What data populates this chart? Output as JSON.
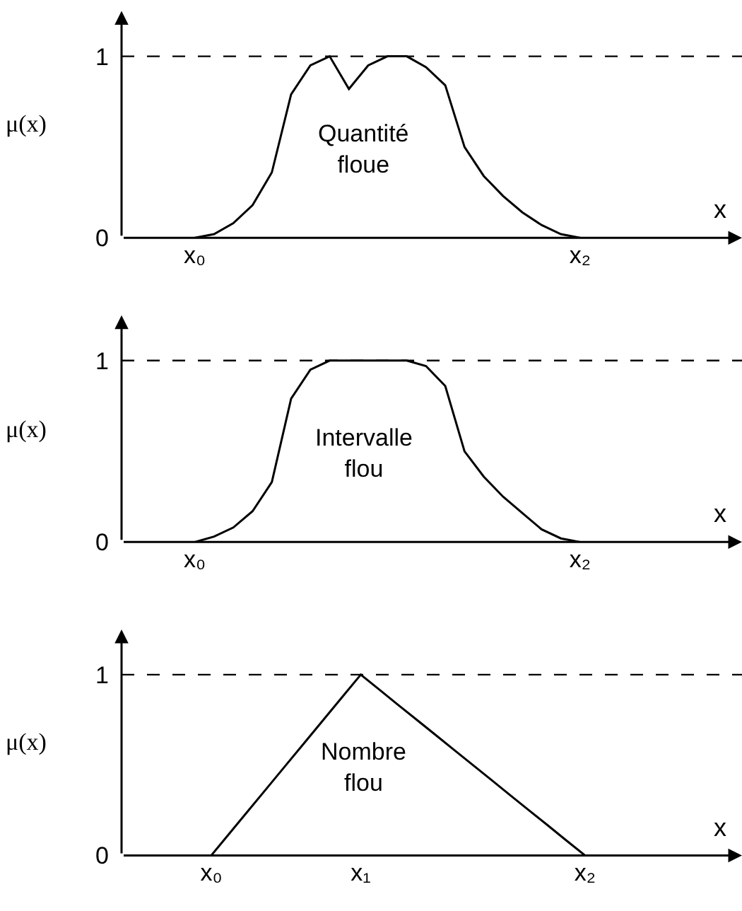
{
  "chart_data": [
    {
      "type": "line",
      "categories": [
        null,
        null,
        null,
        "x₀",
        null,
        null,
        null,
        null,
        null,
        null,
        null,
        null,
        null,
        null,
        null,
        null,
        null,
        null,
        null,
        null,
        null,
        null,
        null,
        "x₂",
        null,
        null,
        null,
        null,
        null,
        null,
        null,
        null
      ],
      "series": [
        {
          "color": "#000000",
          "values": [
            null,
            null,
            null,
            0,
            0.02,
            0.08,
            0.18,
            0.36,
            0.79,
            0.95,
            1,
            0.82,
            0.95,
            1,
            1,
            0.94,
            0.84,
            0.5,
            0.34,
            0.23,
            0.14,
            0.07,
            0.02,
            0,
            null,
            null,
            null,
            null,
            null,
            null,
            null,
            null
          ]
        }
      ],
      "ylim": [
        0,
        1.25
      ],
      "yticks": [
        0,
        1
      ],
      "xlabel": "x",
      "ylabel": "μ(x)",
      "annotations": [
        "Quantité\nfloue"
      ],
      "ref_lines": [
        {
          "axis": "y",
          "value": 1,
          "color": "#000000",
          "line_style": "dashed"
        }
      ],
      "line_style": "solid"
    },
    {
      "type": "line",
      "categories": [
        null,
        null,
        null,
        "x₀",
        null,
        null,
        null,
        null,
        null,
        null,
        null,
        null,
        null,
        null,
        null,
        null,
        null,
        null,
        null,
        null,
        null,
        null,
        null,
        "x₂",
        null,
        null,
        null,
        null,
        null,
        null,
        null,
        null
      ],
      "series": [
        {
          "color": "#000000",
          "values": [
            null,
            null,
            null,
            0,
            0.03,
            0.08,
            0.17,
            0.33,
            0.79,
            0.95,
            1,
            1,
            1,
            1,
            1,
            0.97,
            0.86,
            0.5,
            0.36,
            0.25,
            0.16,
            0.07,
            0.02,
            0,
            null,
            null,
            null,
            null,
            null,
            null,
            null,
            null
          ]
        }
      ],
      "ylim": [
        0,
        1.25
      ],
      "yticks": [
        0,
        1
      ],
      "xlabel": "x",
      "ylabel": "μ(x)",
      "annotations": [
        "Intervalle\nflou"
      ],
      "ref_lines": [
        {
          "axis": "y",
          "value": 1,
          "color": "#000000",
          "line_style": "dashed"
        }
      ],
      "line_style": "solid"
    },
    {
      "type": "line",
      "categories": [
        null,
        null,
        null,
        null,
        "x₀",
        null,
        null,
        null,
        null,
        null,
        null,
        null,
        "x₁",
        null,
        null,
        null,
        null,
        null,
        null,
        null,
        null,
        null,
        null,
        null,
        "x₂",
        null,
        null,
        null,
        null,
        null,
        null,
        null,
        null
      ],
      "series": [
        {
          "color": "#000000",
          "values": [
            null,
            null,
            null,
            null,
            0,
            0.125,
            0.25,
            0.375,
            0.5,
            0.625,
            0.75,
            0.875,
            1,
            0.917,
            0.833,
            0.75,
            0.667,
            0.583,
            0.5,
            0.417,
            0.333,
            0.25,
            0.167,
            0.083,
            0,
            null,
            null,
            null,
            null,
            null,
            null,
            null,
            null
          ]
        }
      ],
      "ylim": [
        0,
        1.25
      ],
      "yticks": [
        0,
        1
      ],
      "xlabel": "x",
      "ylabel": "μ(x)",
      "annotations": [
        "Nombre\nflou"
      ],
      "ref_lines": [
        {
          "axis": "y",
          "value": 1,
          "color": "#000000",
          "line_style": "dashed"
        }
      ],
      "line_style": "solid"
    }
  ]
}
